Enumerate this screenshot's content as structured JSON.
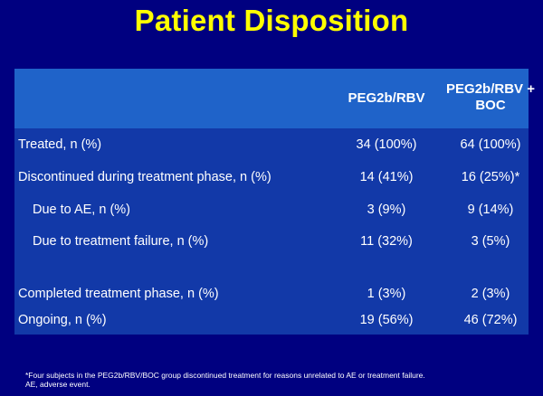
{
  "title": "Patient Disposition",
  "table": {
    "columns": [
      "PEG2b/RBV",
      "PEG2b/RBV + BOC"
    ],
    "rows": [
      {
        "label": "Treated, n (%)",
        "v1": "34 (100%)",
        "v2": "64 (100%)"
      },
      {
        "label": "Discontinued during treatment phase, n (%)",
        "v1": "14 (41%)",
        "v2": "16 (25%)*"
      },
      {
        "label": "Due to AE, n (%)",
        "v1": "3 (9%)",
        "v2": "9 (14%)"
      },
      {
        "label": "Due to treatment failure, n (%)",
        "v1": "11 (32%)",
        "v2": "3 (5%)"
      },
      {
        "label": "Completed treatment phase, n (%)",
        "v1": "1 (3%)",
        "v2": "2 (3%)"
      },
      {
        "label": "Ongoing, n (%)",
        "v1": "19 (56%)",
        "v2": "46 (72%)"
      }
    ]
  },
  "footnote": {
    "line1": "*Four subjects in the PEG2b/RBV/BOC group discontinued treatment for reasons unrelated to AE or treatment failure.",
    "line2": "AE, adverse event."
  },
  "colors": {
    "background": "#000080",
    "title": "#FFFF00",
    "header_band": "#1F63C9",
    "body_band": "#1239A8"
  }
}
